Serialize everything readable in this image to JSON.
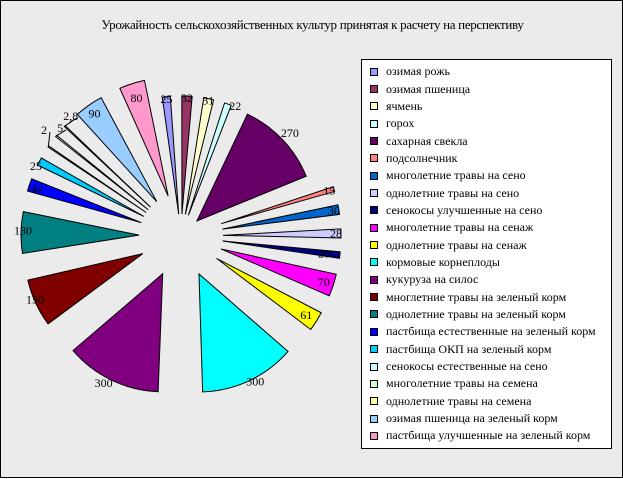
{
  "chart_data": {
    "type": "pie",
    "title": "Урожайность сельскохозяйственных культур принятая к расчету на перспективу",
    "legend_position": "right",
    "slices": [
      {
        "label": "озимая рожь",
        "value": 25,
        "color": "#9999ff"
      },
      {
        "label": "озимая пшеница",
        "value": 32,
        "color": "#993366"
      },
      {
        "label": "ячмень",
        "value": 31,
        "color": "#ffffcc"
      },
      {
        "label": "горох",
        "value": 22,
        "color": "#ccffff"
      },
      {
        "label": "сахарная свекла",
        "value": 270,
        "color": "#660066"
      },
      {
        "label": "подсолнечник",
        "value": 15,
        "color": "#ff8080"
      },
      {
        "label": "многолетние травы на сено",
        "value": 30,
        "color": "#0066cc"
      },
      {
        "label": "однолетние травы на сено",
        "value": 28,
        "color": "#ccccff"
      },
      {
        "label": "сенокосы улучшенные на сено",
        "value": 20,
        "color": "#000080"
      },
      {
        "label": "многолетние травы на сенаж",
        "value": 70,
        "color": "#ff00ff"
      },
      {
        "label": "однолетние травы на сенаж",
        "value": 61,
        "color": "#ffff00"
      },
      {
        "label": "кормовые корнеплоды",
        "value": 300,
        "color": "#00ffff"
      },
      {
        "label": "кукуруза на силос",
        "value": 300,
        "color": "#800080"
      },
      {
        "label": "многлетние травы на зеленый корм",
        "value": 150,
        "color": "#800000"
      },
      {
        "label": "однолетние травы на зеленый корм",
        "value": 130,
        "color": "#008080"
      },
      {
        "label": "пастбища естественные на зеленый корм",
        "value": 40,
        "color": "#0000ff"
      },
      {
        "label": "пастбища ОКП на зеленый корм",
        "value": 25,
        "color": "#00ccff"
      },
      {
        "label": "сенокосы естественные на сено",
        "value": 2,
        "color": "#ccffff"
      },
      {
        "label": "многолетние травы на семена",
        "value": 5,
        "color": "#ccffcc"
      },
      {
        "label": "однолетние травы на семена",
        "value": 2.8,
        "color": "#ffff99"
      },
      {
        "label": "озимая пшеница на зеленый корм",
        "value": 90,
        "color": "#99ccff"
      },
      {
        "label": "пастбища улучшенные на зеленый корм",
        "value": 80,
        "color": "#ff99cc"
      }
    ],
    "data_labels": [
      "25",
      "32",
      "31",
      "22",
      "270",
      "15",
      "30",
      "28",
      "20",
      "70",
      "61",
      "300",
      "300",
      "150",
      "130",
      "40",
      "25",
      "2",
      "5",
      "2,8",
      "90",
      "80"
    ]
  }
}
